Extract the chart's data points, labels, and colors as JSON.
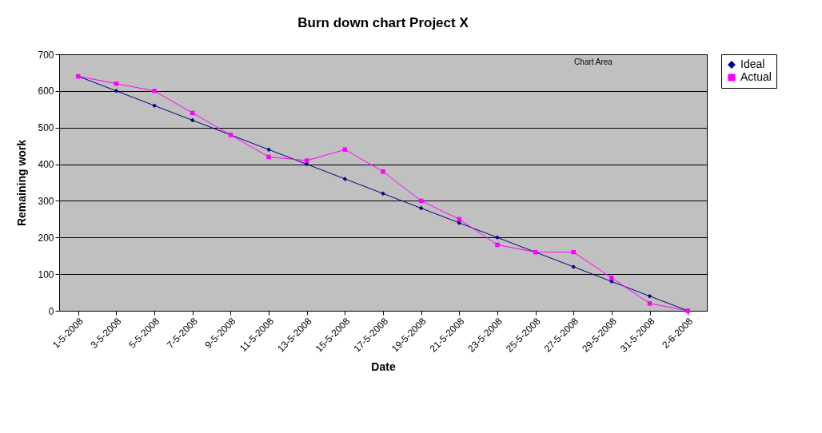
{
  "chart_data": {
    "type": "line",
    "title": "Burn down chart Project X",
    "xlabel": "Date",
    "ylabel": "Remaining work",
    "categories": [
      "1-5-2008",
      "3-5-2008",
      "5-5-2008",
      "7-5-2008",
      "9-5-2008",
      "11-5-2008",
      "13-5-2008",
      "15-5-2008",
      "17-5-2008",
      "19-5-2008",
      "21-5-2008",
      "23-5-2008",
      "25-5-2008",
      "27-5-2008",
      "29-5-2008",
      "31-5-2008",
      "2-6-2008"
    ],
    "series": [
      {
        "name": "Ideal",
        "color": "#000080",
        "marker": "diamond",
        "values": [
          640,
          600,
          560,
          520,
          480,
          440,
          400,
          360,
          320,
          280,
          240,
          200,
          160,
          120,
          80,
          40,
          0
        ]
      },
      {
        "name": "Actual",
        "color": "#ff00ff",
        "marker": "square",
        "values": [
          640,
          620,
          600,
          540,
          480,
          420,
          410,
          440,
          380,
          300,
          250,
          180,
          160,
          160,
          90,
          20,
          0
        ]
      }
    ],
    "ylim": [
      0,
      700
    ],
    "yticks": [
      0,
      100,
      200,
      300,
      400,
      500,
      600,
      700
    ],
    "grid": "y",
    "legend": "right",
    "line_style": "solid",
    "annotations": [
      "Chart Area"
    ]
  }
}
